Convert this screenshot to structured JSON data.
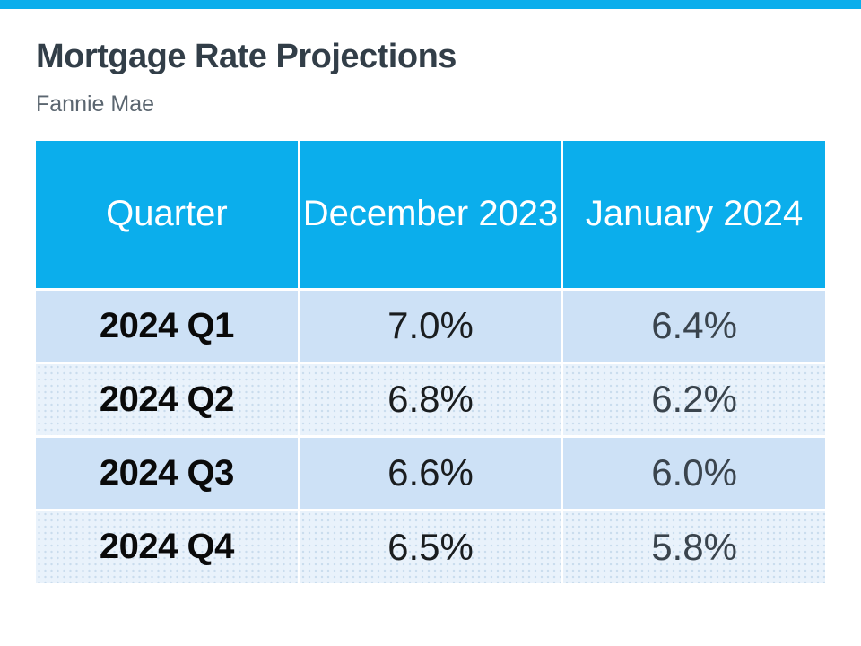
{
  "slide": {
    "title": "Mortgage Rate Projections",
    "subtitle": "Fannie Mae"
  },
  "chart_data": {
    "type": "table",
    "title": "Mortgage Rate Projections",
    "subtitle": "Fannie Mae",
    "columns": [
      "Quarter",
      "December 2023",
      "January 2024"
    ],
    "rows": [
      [
        "2024 Q1",
        "7.0%",
        "6.4%"
      ],
      [
        "2024 Q2",
        "6.8%",
        "6.2%"
      ],
      [
        "2024 Q3",
        "6.6%",
        "6.0%"
      ],
      [
        "2024 Q4",
        "6.5%",
        "5.8%"
      ]
    ]
  },
  "colors": {
    "accent_blue": "#0BAEEC",
    "header_text": "#FFFFFF",
    "row_odd_bg": "#CDE1F6",
    "row_even_bg": "#E9F2FB",
    "title_text": "#323E48",
    "subtitle_text": "#5B6670",
    "quarter_text": "#0A0A0A",
    "december_value_text": "#1A1D1F",
    "january_value_text": "#3A444D"
  }
}
